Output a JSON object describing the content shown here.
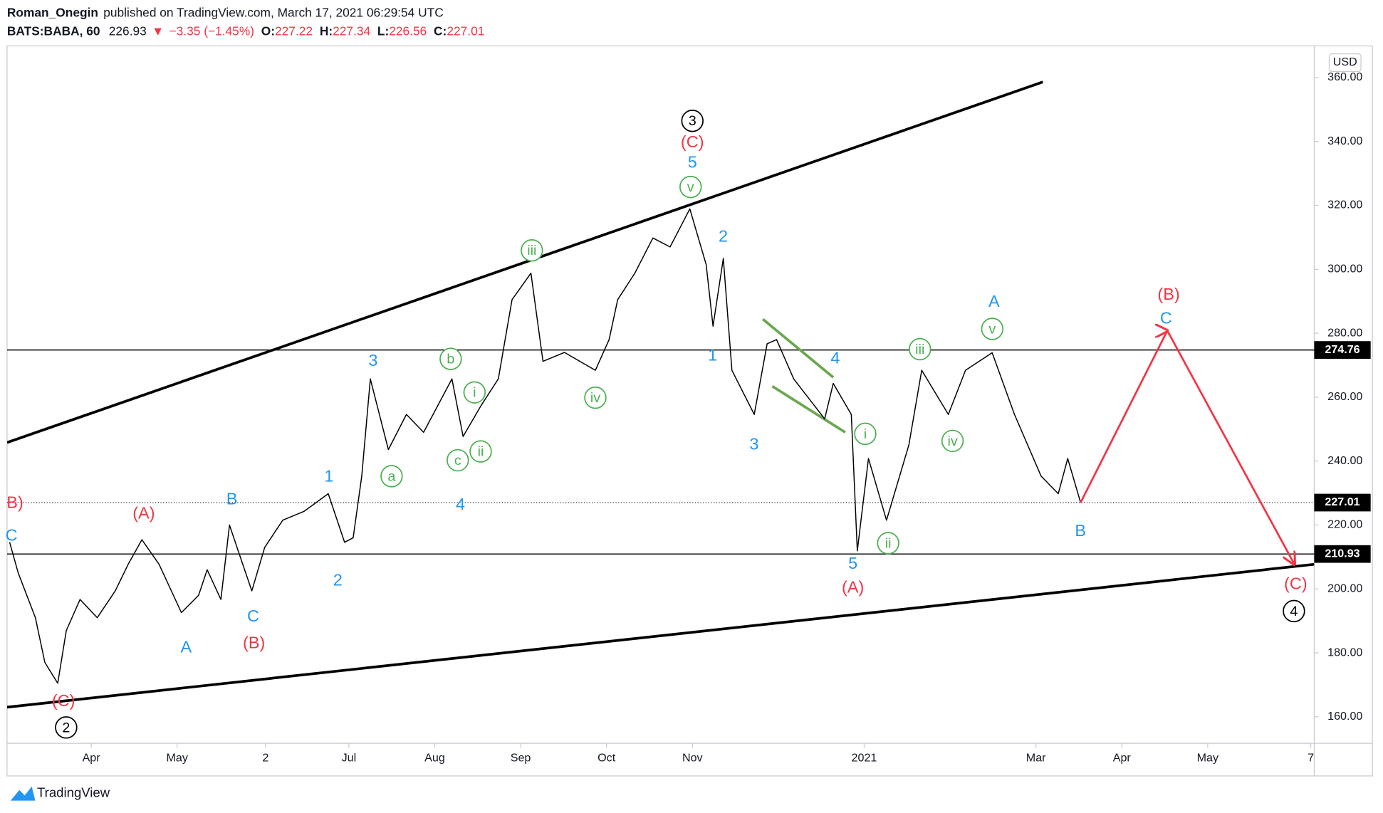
{
  "header": {
    "author": "Roman_Onegin",
    "published": "published on TradingView.com, March 17, 2021 06:29:54 UTC",
    "symbol": "BATS:BABA, 60",
    "last": "226.93",
    "arrow": "▼",
    "change": "−3.35 (−1.45%)",
    "ohlc": [
      {
        "label": "O:",
        "value": "227.22"
      },
      {
        "label": "H:",
        "value": "227.34"
      },
      {
        "label": "L:",
        "value": "226.56"
      },
      {
        "label": "C:",
        "value": "227.01"
      }
    ]
  },
  "chart_data": {
    "type": "line",
    "currency": "USD",
    "color": "#000000",
    "x": [
      3.05,
      3.15,
      3.35,
      3.46,
      3.61,
      3.71,
      3.87,
      4.07,
      4.28,
      4.43,
      4.59,
      4.79,
      5.05,
      5.25,
      5.35,
      5.51,
      5.61,
      5.71,
      5.87,
      6.02,
      6.23,
      6.48,
      6.76,
      6.95,
      7.05,
      7.15,
      7.25,
      7.46,
      7.67,
      7.87,
      8.2,
      8.33,
      8.54,
      8.74,
      8.9,
      9.12,
      9.26,
      9.51,
      9.87,
      10.03,
      10.13,
      10.33,
      10.54,
      10.74,
      10.97,
      11.16,
      11.24,
      11.36,
      11.46,
      11.72,
      11.87,
      11.98,
      12.18,
      12.54,
      12.64,
      12.85,
      12.92,
      13.05,
      13.26,
      13.52,
      13.67,
      13.98,
      14.18,
      14.49,
      14.75,
      15.06,
      15.26,
      15.37,
      15.52
    ],
    "values": [
      214.6,
      205,
      191,
      177,
      170.5,
      187,
      196.7,
      191,
      199.4,
      207.7,
      215.4,
      207.7,
      192.6,
      198,
      206,
      196.7,
      220,
      212,
      199.4,
      213,
      221.5,
      224.3,
      229.8,
      214.6,
      216,
      235.3,
      265.7,
      243.6,
      254.6,
      249,
      265.7,
      247.7,
      257.4,
      265.7,
      290.5,
      298.8,
      271.2,
      274,
      268.4,
      278,
      290.5,
      298.8,
      309.8,
      307,
      318.9,
      301.5,
      282.2,
      303.4,
      268.4,
      254.6,
      276.7,
      278,
      265.7,
      253.2,
      264.3,
      254.6,
      211.9,
      240.8,
      221.5,
      245,
      268.4,
      254.6,
      268.4,
      273.9,
      254.6,
      235.3,
      229.8,
      240.8,
      227.01
    ],
    "xlim": [
      3.02,
      18.24
    ],
    "ylim": [
      151.7,
      369.9
    ],
    "xticks": [
      {
        "value": 4,
        "label": "Apr"
      },
      {
        "value": 5,
        "label": "May"
      },
      {
        "value": 6.03,
        "label": "2"
      },
      {
        "value": 7,
        "label": "Jul"
      },
      {
        "value": 8,
        "label": "Aug"
      },
      {
        "value": 9,
        "label": "Sep"
      },
      {
        "value": 10,
        "label": "Oct"
      },
      {
        "value": 11,
        "label": "Nov"
      },
      {
        "value": 13,
        "label": "2021"
      },
      {
        "value": 15,
        "label": "Mar"
      },
      {
        "value": 16,
        "label": "Apr"
      },
      {
        "value": 17,
        "label": "May"
      },
      {
        "value": 18.2,
        "label": "7"
      }
    ],
    "yticks": [
      {
        "value": 160,
        "label": "160.00"
      },
      {
        "value": 180,
        "label": "180.00"
      },
      {
        "value": 200,
        "label": "200.00"
      },
      {
        "value": 220,
        "label": "220.00"
      },
      {
        "value": 240,
        "label": "240.00"
      },
      {
        "value": 260,
        "label": "260.00"
      },
      {
        "value": 280,
        "label": "280.00"
      },
      {
        "value": 300,
        "label": "300.00"
      },
      {
        "value": 320,
        "label": "320.00"
      },
      {
        "value": 340,
        "label": "340.00"
      },
      {
        "value": 360,
        "label": "360.00"
      }
    ],
    "price_lines": [
      {
        "value": 274.76,
        "style": "solid"
      },
      {
        "value": 227.01,
        "style": "dotted"
      },
      {
        "value": 210.93,
        "style": "solid"
      }
    ],
    "trendlines": [
      {
        "x": [
          3.02,
          15.08
        ],
        "values": [
          245.8,
          358.6
        ],
        "color": "#000000",
        "width": 3
      },
      {
        "x": [
          3.02,
          18.24
        ],
        "values": [
          163,
          207.7
        ],
        "color": "#000000",
        "width": 3
      },
      {
        "x": [
          11.82,
          12.64
        ],
        "values": [
          284.4,
          266.2
        ],
        "color": "#6aa84f",
        "width": 3
      },
      {
        "x": [
          11.93,
          12.78
        ],
        "values": [
          263.4,
          249
        ],
        "color": "#6aa84f",
        "width": 3
      }
    ],
    "projection": {
      "x": [
        15.52,
        16.53,
        18.01
      ],
      "values": [
        227.01,
        280.8,
        207.7
      ],
      "color": "#f23645"
    },
    "annotations": [
      {
        "text": "B)",
        "color": "#f23645"
      },
      {
        "text": "C",
        "color": "#2196f3"
      },
      {
        "text": "(A)",
        "color": "#f23645"
      },
      {
        "text": "B",
        "color": "#2196f3"
      },
      {
        "text": "1",
        "color": "#2196f3"
      },
      {
        "text": "3",
        "color": "#2196f3"
      },
      {
        "text": "4",
        "color": "#2196f3"
      },
      {
        "text": "2",
        "color": "#2196f3"
      },
      {
        "text": "A",
        "color": "#2196f3"
      },
      {
        "text": "C",
        "color": "#2196f3"
      },
      {
        "text": "(B)",
        "color": "#f23645"
      },
      {
        "text": "(C)",
        "color": "#f23645"
      },
      {
        "text": "2",
        "color": "#000000",
        "circled": true
      },
      {
        "text": "3",
        "color": "#000000",
        "circled": true
      },
      {
        "text": "(C)",
        "color": "#f23645"
      },
      {
        "text": "5",
        "color": "#2196f3"
      },
      {
        "text": "v",
        "color": "#4caf50",
        "circled": true
      },
      {
        "text": "iii",
        "color": "#4caf50",
        "circled": true
      },
      {
        "text": "b",
        "color": "#4caf50",
        "circled": true
      },
      {
        "text": "a",
        "color": "#4caf50",
        "circled": true
      },
      {
        "text": "i",
        "color": "#4caf50",
        "circled": true
      },
      {
        "text": "ii",
        "color": "#4caf50",
        "circled": true
      },
      {
        "text": "c",
        "color": "#4caf50",
        "circled": true
      },
      {
        "text": "iv",
        "color": "#4caf50",
        "circled": true
      },
      {
        "text": "2",
        "color": "#2196f3"
      },
      {
        "text": "1",
        "color": "#2196f3"
      },
      {
        "text": "3",
        "color": "#2196f3"
      },
      {
        "text": "4",
        "color": "#2196f3"
      },
      {
        "text": "i",
        "color": "#4caf50",
        "circled": true
      },
      {
        "text": "ii",
        "color": "#4caf50",
        "circled": true
      },
      {
        "text": "5",
        "color": "#2196f3"
      },
      {
        "text": "(A)",
        "color": "#f23645"
      },
      {
        "text": "iii",
        "color": "#4caf50",
        "circled": true
      },
      {
        "text": "iv",
        "color": "#4caf50",
        "circled": true
      },
      {
        "text": "v",
        "color": "#4caf50",
        "circled": true
      },
      {
        "text": "A",
        "color": "#2196f3"
      },
      {
        "text": "B",
        "color": "#2196f3"
      },
      {
        "text": "(B)",
        "color": "#f23645"
      },
      {
        "text": "C",
        "color": "#2196f3"
      },
      {
        "text": "(C)",
        "color": "#f23645"
      },
      {
        "text": "4",
        "color": "#000000",
        "circled": true
      }
    ]
  },
  "footer": {
    "brand": "TradingView"
  }
}
